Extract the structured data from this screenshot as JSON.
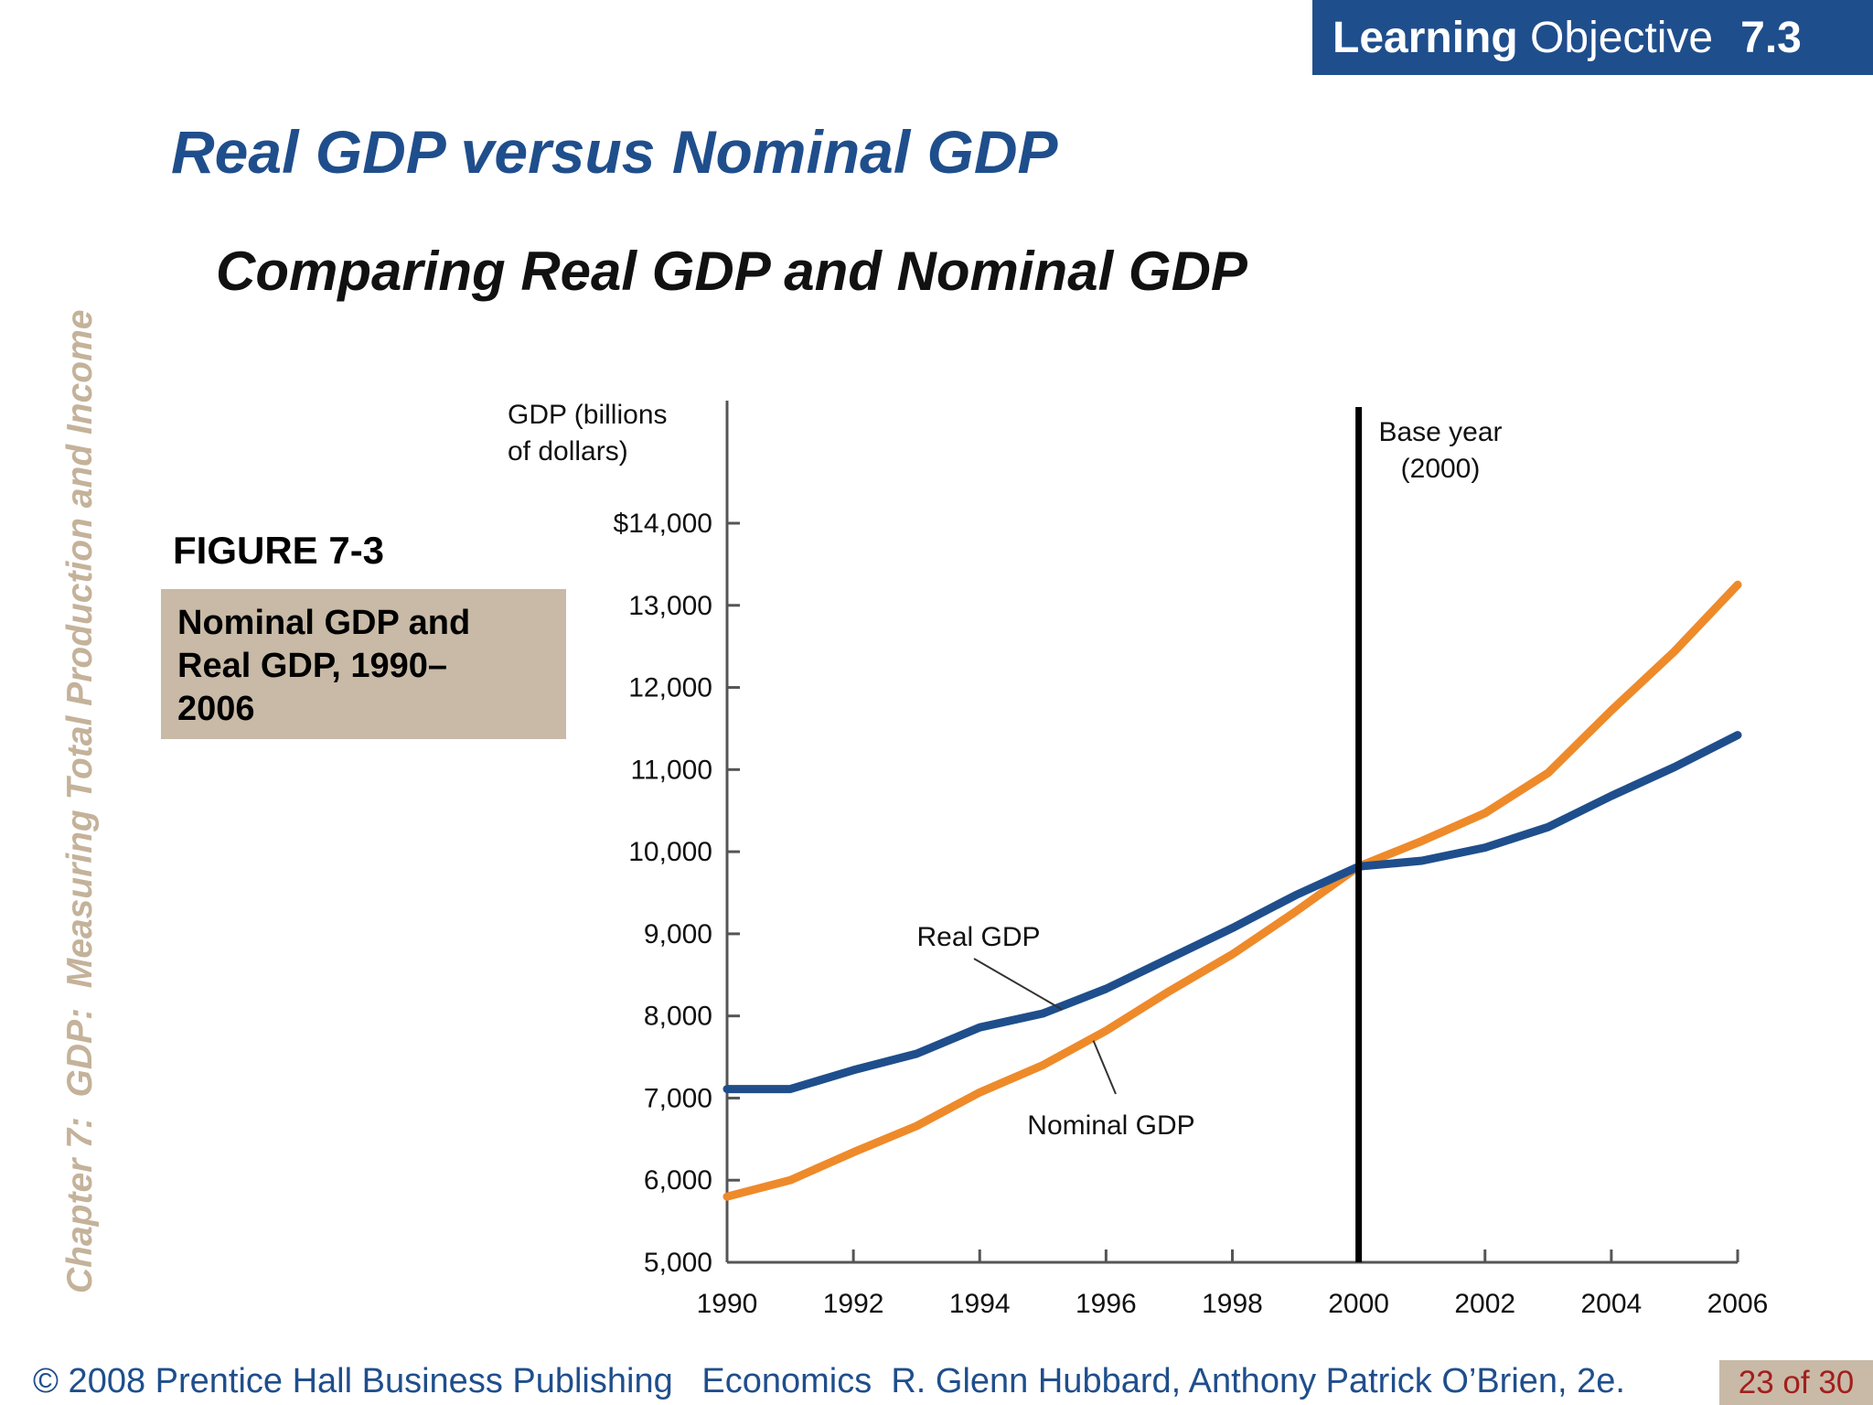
{
  "header": {
    "lo_bold": "Learning",
    "lo_text": "Objective",
    "lo_number": "7.3",
    "title": "Real GDP versus Nominal GDP",
    "subtitle": "Comparing Real GDP and Nominal GDP"
  },
  "sidebar": {
    "chapter": "Chapter 7:  GDP:  Measuring Total Production and Income"
  },
  "figure": {
    "label": "FIGURE 7-3",
    "caption_lines": [
      "Nominal GDP and",
      "Real GDP, 1990–",
      "2006"
    ]
  },
  "chart_data": {
    "type": "line",
    "ylabel_lines": [
      "GDP (billions",
      "of dollars)"
    ],
    "xlabel": "",
    "ylim": [
      5000,
      14000
    ],
    "xlim": [
      1990,
      2006
    ],
    "y_ticks": [
      5000,
      6000,
      7000,
      8000,
      9000,
      10000,
      11000,
      12000,
      13000,
      14000
    ],
    "y_tick_labels": [
      "5,000",
      "6,000",
      "7,000",
      "8,000",
      "9,000",
      "10,000",
      "11,000",
      "12,000",
      "13,000",
      "$14,000"
    ],
    "x_ticks": [
      1990,
      1992,
      1994,
      1996,
      1998,
      2000,
      2002,
      2004,
      2006
    ],
    "x_tick_labels": [
      "1990",
      "1992",
      "1994",
      "1996",
      "1998",
      "2000",
      "2002",
      "2004",
      "2006"
    ],
    "series": [
      {
        "name": "Real GDP",
        "color": "#1f4e8c",
        "x": [
          1990,
          1991,
          1992,
          1993,
          1994,
          1995,
          1996,
          1997,
          1998,
          1999,
          2000,
          2001,
          2002,
          2003,
          2004,
          2005,
          2006
        ],
        "values": [
          7110,
          7110,
          7340,
          7540,
          7860,
          8030,
          8330,
          8700,
          9070,
          9470,
          9820,
          9890,
          10050,
          10300,
          10680,
          11030,
          11420
        ]
      },
      {
        "name": "Nominal GDP",
        "color": "#ee8a2a",
        "x": [
          1990,
          1991,
          1992,
          1993,
          1994,
          1995,
          1996,
          1997,
          1998,
          1999,
          2000,
          2001,
          2002,
          2003,
          2004,
          2005,
          2006
        ],
        "values": [
          5800,
          6000,
          6340,
          6660,
          7070,
          7400,
          7820,
          8300,
          8750,
          9270,
          9820,
          10130,
          10470,
          10960,
          11720,
          12440,
          13250
        ]
      }
    ],
    "annotations": {
      "base_year_x": 2000,
      "base_year_lines": [
        "Base year",
        "(2000)"
      ],
      "real_label": "Real GDP",
      "nominal_label": "Nominal GDP"
    }
  },
  "footer": {
    "credit": "© 2008 Prentice Hall Business Publishing   Economics  R. Glenn Hubbard, Anthony Patrick O’Brien, 2e.",
    "page": "23 of 30"
  }
}
